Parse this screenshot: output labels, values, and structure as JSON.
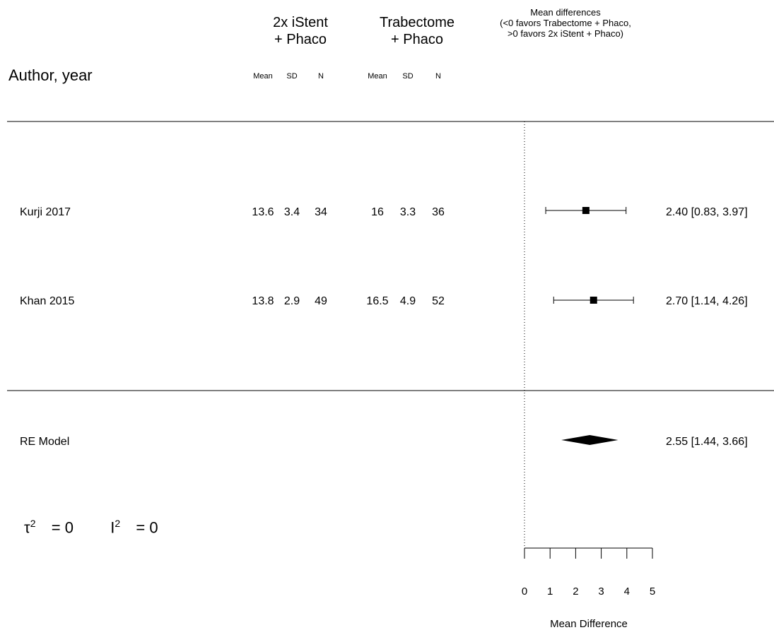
{
  "header": {
    "author_col": "Author, year",
    "group1_line1": "2x iStent",
    "group1_line2": "+ Phaco",
    "group2_line1": "Trabectome",
    "group2_line2": "+ Phaco",
    "md_line1": "Mean differences",
    "md_line2": "(<0 favors Trabectome + Phaco,",
    "md_line3": ">0 favors 2x iStent + Phaco)",
    "sub_cols": [
      "Mean",
      "SD",
      "N",
      "Mean",
      "SD",
      "N"
    ]
  },
  "studies": [
    {
      "label": "Kurji 2017",
      "g1": [
        "13.6",
        "3.4",
        "34"
      ],
      "g2": [
        "16",
        "3.3",
        "36"
      ],
      "ci_text": "2.40 [0.83, 3.97]"
    },
    {
      "label": "Khan 2015",
      "g1": [
        "13.8",
        "2.9",
        "49"
      ],
      "g2": [
        "16.5",
        "4.9",
        "52"
      ],
      "ci_text": "2.70 [1.14, 4.26]"
    }
  ],
  "summary": {
    "label": "RE Model",
    "ci_text": "2.55 [1.44, 3.66]",
    "tau_symbol": "τ",
    "tau_value": "= 0",
    "i_symbol": "I",
    "i_value": "= 0",
    "sup": "2"
  },
  "chart_data": {
    "type": "forest",
    "xlabel": "Mean Difference",
    "xlim": [
      0,
      5
    ],
    "ticks": [
      0,
      1,
      2,
      3,
      4,
      5
    ],
    "reference_line": 0,
    "studies": [
      {
        "name": "Kurji 2017",
        "estimate": 2.4,
        "lower": 0.83,
        "upper": 3.97
      },
      {
        "name": "Khan 2015",
        "estimate": 2.7,
        "lower": 1.14,
        "upper": 4.26
      }
    ],
    "pooled": {
      "name": "RE Model",
      "estimate": 2.55,
      "lower": 1.44,
      "upper": 3.66
    }
  }
}
